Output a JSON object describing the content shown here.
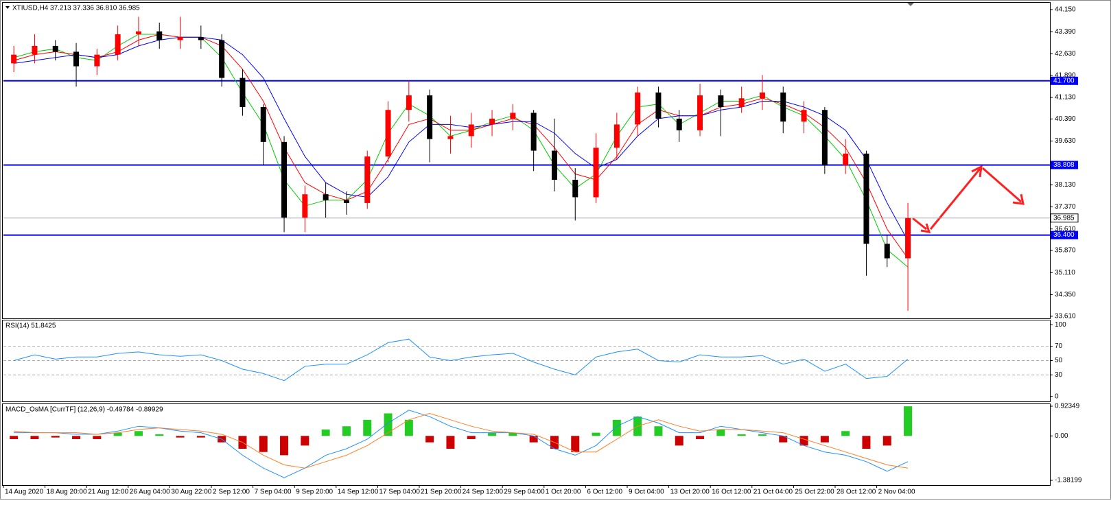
{
  "chart_data": [
    {
      "type": "candlestick",
      "title": "XTIUSD,H4  37.213 37.336 36.810 36.985",
      "categories": [
        "14 Aug 2020",
        null,
        "18 Aug 20:00",
        null,
        "21 Aug 12:00",
        null,
        "26 Aug 04:00",
        null,
        "30 Aug 22:00",
        null,
        "2 Sep 12:00",
        null,
        "7 Sep 04:00",
        null,
        "9 Sep 20:00",
        null,
        "14 Sep 12:00",
        null,
        "17 Sep 04:00",
        null,
        "21 Sep 20:00",
        null,
        "24 Sep 12:00",
        null,
        "29 Sep 04:00",
        null,
        "1 Oct 20:00",
        null,
        "6 Oct 12:00",
        null,
        "9 Oct 04:00",
        null,
        "13 Oct 20:00",
        null,
        "16 Oct 12:00",
        null,
        "21 Oct 04:00",
        null,
        "25 Oct 22:00",
        null,
        "28 Oct 12:00",
        null,
        "2 Nov 04:00",
        null
      ],
      "ohlc": [
        [
          42.3,
          42.9,
          42.0,
          42.6
        ],
        [
          42.6,
          43.3,
          42.3,
          42.9
        ],
        [
          42.9,
          43.1,
          42.4,
          42.7
        ],
        [
          42.7,
          43.0,
          41.5,
          42.2
        ],
        [
          42.2,
          42.8,
          41.9,
          42.6
        ],
        [
          42.6,
          43.6,
          42.4,
          43.3
        ],
        [
          43.3,
          43.9,
          42.9,
          43.4
        ],
        [
          43.4,
          43.7,
          42.8,
          43.1
        ],
        [
          43.1,
          43.9,
          42.8,
          43.2
        ],
        [
          43.2,
          43.6,
          42.8,
          43.1
        ],
        [
          43.1,
          43.3,
          41.5,
          41.8
        ],
        [
          41.8,
          42.1,
          40.5,
          40.8
        ],
        [
          40.8,
          40.9,
          38.8,
          39.6
        ],
        [
          39.6,
          39.8,
          36.5,
          37.0
        ],
        [
          37.0,
          38.1,
          36.5,
          37.8
        ],
        [
          37.8,
          38.2,
          37.0,
          37.6
        ],
        [
          37.6,
          37.9,
          37.1,
          37.5
        ],
        [
          37.5,
          39.3,
          37.3,
          39.1
        ],
        [
          39.1,
          41.0,
          38.9,
          40.7
        ],
        [
          40.7,
          41.7,
          40.3,
          41.2
        ],
        [
          41.2,
          41.4,
          38.9,
          39.7
        ],
        [
          39.7,
          40.5,
          39.2,
          39.8
        ],
        [
          39.8,
          40.6,
          39.4,
          40.2
        ],
        [
          40.2,
          40.7,
          39.8,
          40.4
        ],
        [
          40.4,
          40.9,
          40.0,
          40.6
        ],
        [
          40.6,
          40.7,
          38.6,
          39.3
        ],
        [
          39.3,
          40.4,
          37.9,
          38.3
        ],
        [
          38.3,
          38.7,
          36.9,
          37.7
        ],
        [
          37.7,
          39.9,
          37.5,
          39.4
        ],
        [
          39.4,
          40.6,
          39.0,
          40.2
        ],
        [
          40.2,
          41.5,
          39.8,
          41.3
        ],
        [
          41.3,
          41.5,
          40.1,
          40.4
        ],
        [
          40.4,
          40.7,
          39.6,
          40.0
        ],
        [
          40.0,
          41.6,
          39.8,
          41.2
        ],
        [
          41.2,
          41.4,
          39.8,
          40.8
        ],
        [
          40.8,
          41.5,
          40.6,
          41.1
        ],
        [
          41.1,
          41.9,
          40.7,
          41.3
        ],
        [
          41.3,
          41.5,
          39.9,
          40.3
        ],
        [
          40.3,
          41.0,
          39.9,
          40.7
        ],
        [
          40.7,
          40.8,
          38.5,
          38.8
        ],
        [
          38.8,
          39.7,
          38.5,
          39.2
        ],
        [
          39.2,
          39.3,
          35.0,
          36.1
        ],
        [
          36.1,
          36.4,
          35.3,
          35.6
        ],
        [
          35.6,
          37.5,
          33.8,
          36.985
        ]
      ],
      "up_color": "#ff0000",
      "down_color": "#000000",
      "series": [
        {
          "color": "#00cc00",
          "values": [
            42.5,
            42.7,
            42.8,
            42.5,
            42.4,
            42.9,
            43.3,
            43.3,
            43.2,
            43.2,
            42.5,
            41.3,
            40.2,
            38.3,
            37.4,
            37.6,
            37.6,
            38.3,
            39.9,
            40.9,
            40.5,
            39.8,
            40.0,
            40.3,
            40.5,
            40.0,
            38.8,
            38.0,
            38.5,
            39.8,
            40.8,
            40.9,
            40.2,
            40.6,
            41.0,
            41.0,
            41.2,
            40.8,
            40.5,
            39.8,
            39.0,
            37.6,
            35.9,
            35.3
          ]
        },
        {
          "color": "#ff0000",
          "values": [
            42.4,
            42.6,
            42.7,
            42.6,
            42.5,
            42.7,
            43.1,
            43.3,
            43.2,
            43.2,
            42.9,
            42.1,
            41.0,
            39.4,
            38.2,
            37.8,
            37.6,
            37.9,
            39.0,
            40.2,
            40.4,
            40.0,
            40.0,
            40.2,
            40.4,
            40.2,
            39.4,
            38.5,
            38.3,
            39.1,
            40.2,
            40.7,
            40.5,
            40.5,
            40.8,
            40.9,
            41.1,
            40.9,
            40.6,
            40.1,
            39.4,
            38.2,
            36.6,
            35.6
          ]
        },
        {
          "color": "#0000ff",
          "values": [
            42.3,
            42.4,
            42.5,
            42.6,
            42.5,
            42.6,
            42.9,
            43.1,
            43.2,
            43.2,
            43.1,
            42.6,
            41.8,
            40.4,
            39.1,
            38.2,
            37.8,
            37.7,
            38.4,
            39.6,
            40.2,
            40.2,
            40.1,
            40.2,
            40.3,
            40.3,
            39.9,
            39.2,
            38.7,
            39.0,
            39.8,
            40.4,
            40.5,
            40.5,
            40.7,
            40.8,
            41.0,
            41.0,
            40.8,
            40.5,
            40.0,
            39.0,
            37.5,
            36.2
          ]
        }
      ],
      "ylim": [
        33.56,
        44.36
      ],
      "yticks": [
        {
          "value": 44.15,
          "label": "44.150"
        },
        {
          "value": 43.39,
          "label": "43.390"
        },
        {
          "value": 42.63,
          "label": "42.630"
        },
        {
          "value": 41.89,
          "label": "41.890"
        },
        {
          "value": 41.13,
          "label": "41.130"
        },
        {
          "value": 40.39,
          "label": "40.390"
        },
        {
          "value": 39.63,
          "label": "39.630"
        },
        {
          "value": 38.13,
          "label": "38.130"
        },
        {
          "value": 37.37,
          "label": "37.370"
        },
        {
          "value": 36.61,
          "label": "36.610"
        },
        {
          "value": 35.87,
          "label": "35.870"
        },
        {
          "value": 35.11,
          "label": "35.110"
        },
        {
          "value": 34.35,
          "label": "34.350"
        },
        {
          "value": 33.61,
          "label": "33.610"
        }
      ],
      "levels": [
        {
          "value": 41.7,
          "label": "41.700",
          "color": "#0000ff"
        },
        {
          "value": 38.808,
          "label": "38.808",
          "color": "#0000ff"
        },
        {
          "value": 36.4,
          "label": "36.400",
          "color": "#0000ff"
        }
      ],
      "current": {
        "value": 36.985,
        "label": "36.985",
        "color": "#a0a8b8"
      }
    },
    {
      "type": "line",
      "title": "RSI(14) 51.8425",
      "series": [
        {
          "color": "#1e90ff",
          "values": [
            50,
            58,
            52,
            55,
            55,
            60,
            62,
            58,
            56,
            58,
            50,
            38,
            32,
            22,
            42,
            45,
            45,
            58,
            75,
            80,
            55,
            50,
            55,
            58,
            60,
            48,
            38,
            30,
            55,
            62,
            66,
            50,
            48,
            58,
            55,
            55,
            57,
            45,
            52,
            35,
            45,
            25,
            28,
            52
          ]
        }
      ],
      "ylim": [
        -7,
        106
      ],
      "yticks": [
        100,
        70,
        50,
        30,
        0
      ],
      "dashed_levels": [
        70,
        50,
        30
      ]
    },
    {
      "type": "macd",
      "title": "MACD_OsMA [CurrTF] (12,26,9) -0.49784 -0.89929",
      "histogram": [
        -0.1,
        -0.1,
        -0.05,
        -0.1,
        -0.1,
        0.1,
        0.15,
        0.05,
        -0.05,
        -0.05,
        -0.2,
        -0.4,
        -0.5,
        -0.6,
        -0.3,
        0.2,
        0.3,
        0.5,
        0.7,
        0.5,
        -0.2,
        -0.4,
        -0.1,
        0.1,
        0.1,
        -0.2,
        -0.4,
        -0.5,
        0.1,
        0.5,
        0.6,
        0.3,
        -0.3,
        -0.1,
        0.2,
        0.05,
        0.05,
        -0.2,
        -0.3,
        -0.2,
        0.15,
        -0.4,
        -0.3,
        0.92
      ],
      "positive_color": "#22cc22",
      "negative_color": "#cc0000",
      "series": [
        {
          "color": "#1e90ff",
          "values": [
            0.1,
            0.1,
            0.1,
            0.05,
            0.05,
            0.15,
            0.3,
            0.25,
            0.15,
            0.1,
            -0.1,
            -0.6,
            -1.0,
            -1.3,
            -1.0,
            -0.6,
            -0.4,
            -0.1,
            0.4,
            0.8,
            0.6,
            0.3,
            0.1,
            0.1,
            0.1,
            0,
            -0.4,
            -0.6,
            -0.3,
            0.3,
            0.6,
            0.4,
            0.1,
            0.1,
            0.3,
            0.2,
            0.1,
            0,
            -0.3,
            -0.5,
            -0.6,
            -0.8,
            -1.1,
            -0.8
          ]
        },
        {
          "color": "#ff7f27",
          "values": [
            0.15,
            0.1,
            0.1,
            0.1,
            0.05,
            0.1,
            0.2,
            0.25,
            0.2,
            0.15,
            0.05,
            -0.2,
            -0.6,
            -0.9,
            -1.0,
            -0.8,
            -0.6,
            -0.3,
            0.1,
            0.5,
            0.7,
            0.5,
            0.3,
            0.15,
            0.1,
            0.05,
            -0.2,
            -0.5,
            -0.5,
            -0.1,
            0.3,
            0.5,
            0.3,
            0.15,
            0.2,
            0.2,
            0.15,
            0.1,
            -0.1,
            -0.3,
            -0.5,
            -0.7,
            -0.9,
            -1.0
          ]
        }
      ],
      "ylim": [
        -1.53,
        0.966
      ],
      "yticks": [
        {
          "value": 0.92349,
          "label": "0.92349"
        },
        {
          "value": 0,
          "label": "0.00"
        },
        {
          "value": -1.38199,
          "label": "-1.38199"
        }
      ]
    }
  ]
}
